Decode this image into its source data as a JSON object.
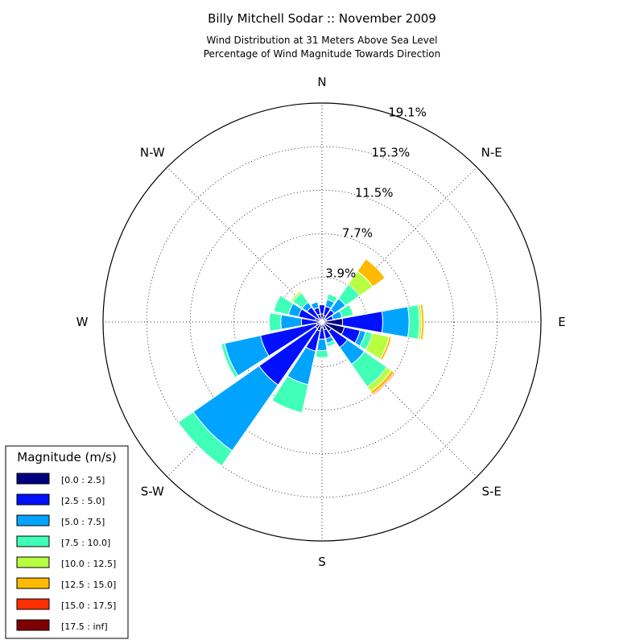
{
  "chart_data": {
    "type": "windrose",
    "title": "Billy Mitchell Sodar :: November 2009",
    "subtitle_lines": [
      "Wind Distribution at 31 Meters Above Sea Level",
      "Percentage of Wind Magnitude Towards Direction"
    ],
    "directions": [
      {
        "label": "N"
      },
      {
        "label": ""
      },
      {
        "label": "N-E"
      },
      {
        "label": ""
      },
      {
        "label": "E"
      },
      {
        "label": ""
      },
      {
        "label": "S-E"
      },
      {
        "label": ""
      },
      {
        "label": "S"
      },
      {
        "label": ""
      },
      {
        "label": "S-W"
      },
      {
        "label": ""
      },
      {
        "label": "W"
      },
      {
        "label": ""
      },
      {
        "label": "N-W"
      },
      {
        "label": ""
      }
    ],
    "ring_labels": [
      "3.9%",
      "7.7%",
      "11.5%",
      "15.3%",
      "19.1%"
    ],
    "r_max": 19.1,
    "legend": {
      "title": "Magnitude (m/s)",
      "placement": "lower-left",
      "entries": [
        {
          "label": "[0.0 : 2.5]",
          "color": "#000080"
        },
        {
          "label": "[2.5 : 5.0]",
          "color": "#0010ff"
        },
        {
          "label": "[5.0 : 7.5]",
          "color": "#00a4ff"
        },
        {
          "label": "[7.5 : 10.0]",
          "color": "#40ffb7"
        },
        {
          "label": "[10.0 : 12.5]",
          "color": "#b7ff40"
        },
        {
          "label": "[12.5 : 15.0]",
          "color": "#ffb900"
        },
        {
          "label": "[15.0 : 17.5]",
          "color": "#ff3000"
        },
        {
          "label": "[17.5 : inf]",
          "color": "#800000"
        }
      ]
    },
    "sector_percent_by_bin": [
      [
        0.7,
        0.8,
        0.0,
        0.0,
        0.0,
        0.0,
        0.0,
        0.0
      ],
      [
        0.6,
        0.8,
        0.6,
        0.5,
        0.0,
        0.0,
        0.0,
        0.0
      ],
      [
        0.4,
        0.9,
        1.2,
        1.5,
        1.4,
        1.3,
        0.0,
        0.0
      ],
      [
        0.4,
        0.6,
        0.8,
        1.0,
        0.0,
        0.0,
        0.0,
        0.0
      ],
      [
        1.8,
        3.5,
        2.3,
        0.9,
        0.2,
        0.2,
        0.0,
        0.0
      ],
      [
        2.0,
        1.4,
        0.5,
        0.6,
        1.5,
        0.2,
        0.0,
        0.0
      ],
      [
        1.0,
        1.7,
        1.8,
        2.4,
        0.5,
        0.3,
        0.1,
        0.0
      ],
      [
        0.7,
        0.8,
        0.4,
        0.3,
        0.0,
        0.0,
        0.0,
        0.0
      ],
      [
        0.5,
        1.0,
        1.0,
        0.6,
        0.0,
        0.0,
        0.0,
        0.0
      ],
      [
        0.8,
        1.8,
        3.0,
        2.5,
        0.0,
        0.0,
        0.0,
        0.0
      ],
      [
        0.7,
        6.0,
        7.0,
        1.6,
        0.0,
        0.0,
        0.0,
        0.0
      ],
      [
        0.5,
        5.0,
        3.2,
        0.3,
        0.0,
        0.0,
        0.0,
        0.0
      ],
      [
        0.3,
        1.5,
        1.8,
        1.0,
        0.0,
        0.0,
        0.0,
        0.0
      ],
      [
        0.6,
        1.5,
        0.9,
        1.3,
        0.0,
        0.0,
        0.0,
        0.0
      ],
      [
        0.4,
        1.2,
        0.5,
        1.0,
        0.2,
        0.0,
        0.0,
        0.0
      ],
      [
        0.7,
        0.6,
        0.5,
        0.0,
        0.0,
        0.0,
        0.0,
        0.0
      ]
    ]
  }
}
